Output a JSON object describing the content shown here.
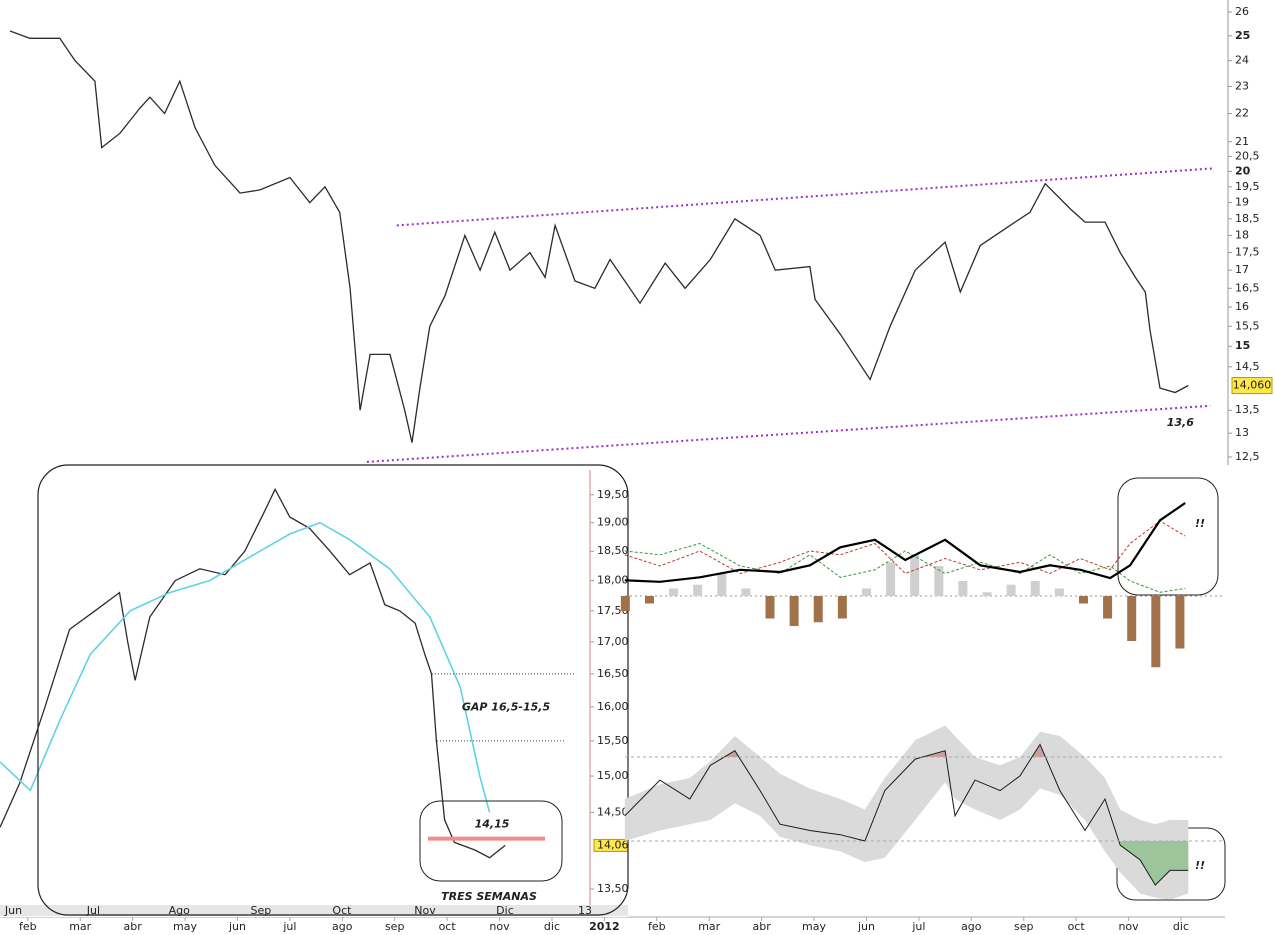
{
  "chart_data": [
    {
      "type": "line",
      "color": "#2b2b2b",
      "log_scale": true,
      "x": [
        0.66,
        1.04,
        1.61,
        1.9,
        2.28,
        2.41,
        2.76,
        3.14,
        3.33,
        3.61,
        3.9,
        4.19,
        4.57,
        5.05,
        5.43,
        6.0,
        6.38,
        6.67,
        6.95,
        7.15,
        7.34,
        7.53,
        7.91,
        8.19,
        8.33,
        8.48,
        8.67,
        8.96,
        9.34,
        9.63,
        9.91,
        10.2,
        10.58,
        10.87,
        11.06,
        11.44,
        11.82,
        12.11,
        12.68,
        13.16,
        13.54,
        14.02,
        14.49,
        14.97,
        15.26,
        15.92,
        16.02,
        16.5,
        17.07,
        17.45,
        17.93,
        18.5,
        18.79,
        19.17,
        19.74,
        20.12,
        20.41,
        20.89,
        21.17,
        21.55,
        21.84,
        22.13,
        22.32,
        22.41,
        22.6,
        22.89,
        23.14
      ],
      "values": [
        25.2,
        24.9,
        24.9,
        24,
        23.2,
        20.8,
        21.3,
        22.2,
        22.6,
        22,
        23.2,
        21.5,
        20.2,
        19.3,
        19.4,
        19.8,
        19,
        19.5,
        18.7,
        16.5,
        13.5,
        14.8,
        14.8,
        13.5,
        12.8,
        14,
        15.5,
        16.3,
        18,
        17,
        18.1,
        17,
        17.5,
        16.8,
        18.3,
        16.7,
        16.5,
        17.3,
        16.1,
        17.2,
        16.5,
        17.3,
        18.5,
        18,
        17,
        17.1,
        16.2,
        15.3,
        14.2,
        15.5,
        17,
        17.8,
        16.4,
        17.7,
        18.3,
        18.7,
        19.6,
        18.8,
        18.4,
        18.4,
        17.5,
        16.8,
        16.4,
        15.4,
        14,
        13.9,
        14.06
      ],
      "xlim": [
        0.47,
        23.84
      ],
      "xticks": [
        {
          "value": 1,
          "label": "feb"
        },
        {
          "value": 2,
          "label": "mar"
        },
        {
          "value": 3,
          "label": "abr"
        },
        {
          "value": 4,
          "label": "may"
        },
        {
          "value": 5,
          "label": "jun"
        },
        {
          "value": 6,
          "label": "jul"
        },
        {
          "value": 7,
          "label": "ago"
        },
        {
          "value": 8,
          "label": "sep"
        },
        {
          "value": 9,
          "label": "oct"
        },
        {
          "value": 10,
          "label": "nov"
        },
        {
          "value": 11,
          "label": "dic"
        },
        {
          "value": 12,
          "label": "2012"
        },
        {
          "value": 13,
          "label": "feb"
        },
        {
          "value": 14,
          "label": "mar"
        },
        {
          "value": 15,
          "label": "abr"
        },
        {
          "value": 16,
          "label": "may"
        },
        {
          "value": 17,
          "label": "jun"
        },
        {
          "value": 18,
          "label": "jul"
        },
        {
          "value": 19,
          "label": "ago"
        },
        {
          "value": 20,
          "label": "sep"
        },
        {
          "value": 21,
          "label": "oct"
        },
        {
          "value": 22,
          "label": "nov"
        },
        {
          "value": 23,
          "label": "dic"
        }
      ],
      "ylim": [
        12.5,
        26
      ],
      "yticks": [
        26,
        25,
        24,
        23,
        22,
        21,
        {
          "value": 20.5,
          "label": "20,5"
        },
        20,
        {
          "value": 19.5,
          "label": "19,5"
        },
        19,
        {
          "value": 18.5,
          "label": "18,5"
        },
        18,
        {
          "value": 17.5,
          "label": "17,5"
        },
        17,
        {
          "value": 16.5,
          "label": "16,5"
        },
        16,
        {
          "value": 15.5,
          "label": "15,5"
        },
        15,
        {
          "value": 14.5,
          "label": "14,5"
        },
        {
          "value": 13.5,
          "label": "13,5"
        },
        13,
        {
          "value": 12.5,
          "label": "12,5"
        }
      ],
      "trendlines": [
        {
          "x": [
            8.04,
            23.6
          ],
          "values": [
            18.3,
            20.1
          ],
          "color": "#9b2fc9"
        },
        {
          "x": [
            7.47,
            23.56
          ],
          "values": [
            12.4,
            13.6
          ],
          "color": "#9b2fc9",
          "end_label": "13,6"
        }
      ],
      "price_tag": {
        "value": 14.06,
        "label": "14,060"
      }
    },
    {
      "type": "line",
      "log_scale": true,
      "series": [
        {
          "color": "#2b2b2b",
          "x": [
            5.94,
            6.18,
            6.49,
            6.79,
            7.1,
            7.4,
            7.5,
            7.59,
            7.77,
            8.08,
            8.38,
            8.69,
            8.93,
            9.17,
            9.3,
            9.48,
            9.72,
            9.97,
            10.21,
            10.46,
            10.64,
            10.82,
            11.01,
            11.13,
            11.21,
            11.27,
            11.37,
            11.49,
            11.74,
            11.92,
            12.11
          ],
          "values": [
            14.3,
            14.9,
            16.0,
            17.2,
            17.5,
            17.8,
            17.0,
            16.4,
            17.4,
            18.0,
            18.2,
            18.1,
            18.5,
            19.2,
            19.6,
            19.1,
            18.9,
            18.5,
            18.1,
            18.3,
            17.6,
            17.5,
            17.3,
            16.8,
            16.5,
            15.5,
            14.4,
            14.1,
            14.0,
            13.9,
            14.06
          ]
        },
        {
          "color": "#5fd3e6",
          "x": [
            5.94,
            6.31,
            6.67,
            7.04,
            7.53,
            8.01,
            8.5,
            8.99,
            9.48,
            9.85,
            10.21,
            10.7,
            11.19,
            11.56,
            11.8,
            11.92
          ],
          "values": [
            15.2,
            14.8,
            15.8,
            16.8,
            17.5,
            17.8,
            18.0,
            18.4,
            18.8,
            19.0,
            18.7,
            18.2,
            17.4,
            16.3,
            15.0,
            14.5
          ]
        }
      ],
      "xlim": [
        5.94,
        13.61
      ],
      "xticks": [
        {
          "value": 6,
          "label": "Jun"
        },
        {
          "value": 7,
          "label": "Jul"
        },
        {
          "value": 8,
          "label": "Ago"
        },
        {
          "value": 9,
          "label": "Sep"
        },
        {
          "value": 10,
          "label": "Oct"
        },
        {
          "value": 11,
          "label": "Nov"
        },
        {
          "value": 12,
          "label": "Dic"
        },
        13
      ],
      "ylim": [
        13.3,
        20.05
      ],
      "yticks": [
        {
          "value": 19.5,
          "label": "19,50"
        },
        {
          "value": 19,
          "label": "19,00"
        },
        {
          "value": 18.5,
          "label": "18,50"
        },
        {
          "value": 18,
          "label": "18,00"
        },
        {
          "value": 17.5,
          "label": "17,50"
        },
        {
          "value": 17,
          "label": "17,00"
        },
        {
          "value": 16.5,
          "label": "16,50"
        },
        {
          "value": 16,
          "label": "16,00"
        },
        {
          "value": 15.5,
          "label": "15,50"
        },
        {
          "value": 15,
          "label": "15,00"
        },
        {
          "value": 14.5,
          "label": "14,50"
        },
        {
          "value": 13.5,
          "label": "13,50"
        }
      ],
      "gap": {
        "from": 16.5,
        "to": 15.5,
        "label": "GAP 16,5-15,5"
      },
      "support": {
        "value": 14.15,
        "label": "14,15"
      },
      "note": "TRES SEMANAS",
      "price_tag": {
        "value": 14.06,
        "label": "14,06"
      }
    },
    {
      "type": "line",
      "ylim": [
        -1,
        1.4
      ],
      "annotation": "!!",
      "series": [
        {
          "style": "bar",
          "color": "#cfcfcf",
          "negative_color": "#a0724a",
          "x": [
            12.4,
            12.86,
            13.32,
            13.78,
            14.24,
            14.7,
            15.16,
            15.62,
            16.08,
            16.54,
            17.0,
            17.46,
            17.92,
            18.38,
            18.84,
            19.3,
            19.76,
            20.22,
            20.68,
            21.14,
            21.6,
            22.06,
            22.52,
            22.98
          ],
          "values": [
            -0.2,
            -0.1,
            0.1,
            0.15,
            0.3,
            0.1,
            -0.3,
            -0.4,
            -0.35,
            -0.3,
            0.1,
            0.45,
            0.55,
            0.4,
            0.2,
            0.05,
            0.15,
            0.2,
            0.1,
            -0.1,
            -0.3,
            -0.6,
            -0.95,
            -0.7
          ]
        },
        {
          "style": "dashed",
          "color": "#c0392b",
          "x": [
            12.39,
            13.06,
            13.82,
            14.59,
            15.35,
            15.92,
            16.5,
            17.16,
            17.74,
            18.5,
            19.17,
            19.93,
            20.5,
            21.08,
            21.65,
            22.03,
            22.6,
            23.08
          ],
          "values": [
            0.55,
            0.4,
            0.6,
            0.3,
            0.45,
            0.6,
            0.55,
            0.7,
            0.3,
            0.5,
            0.35,
            0.45,
            0.3,
            0.5,
            0.35,
            0.7,
            1.0,
            0.8
          ]
        },
        {
          "style": "dashed",
          "color": "#2e9b3a",
          "x": [
            12.39,
            13.06,
            13.82,
            14.59,
            15.35,
            15.92,
            16.5,
            17.16,
            17.74,
            18.5,
            19.17,
            19.93,
            20.5,
            21.08,
            21.65,
            22.03,
            22.6,
            23.08
          ],
          "values": [
            0.6,
            0.55,
            0.7,
            0.4,
            0.3,
            0.55,
            0.25,
            0.35,
            0.6,
            0.3,
            0.45,
            0.3,
            0.55,
            0.3,
            0.4,
            0.2,
            0.05,
            0.1
          ]
        },
        {
          "style": "solid",
          "color": "#000000",
          "x": [
            12.39,
            13.06,
            13.82,
            14.59,
            15.35,
            15.92,
            16.5,
            17.16,
            17.74,
            18.5,
            19.17,
            19.93,
            20.5,
            21.08,
            21.65,
            22.03,
            22.6,
            23.08
          ],
          "values": [
            0.21,
            0.19,
            0.25,
            0.35,
            0.32,
            0.41,
            0.65,
            0.75,
            0.48,
            0.75,
            0.41,
            0.32,
            0.41,
            0.35,
            0.24,
            0.41,
            1.01,
            1.24
          ]
        }
      ]
    },
    {
      "type": "line",
      "ylim": [
        0,
        100
      ],
      "levels": [
        70,
        30
      ],
      "annotation": "!!",
      "series": [
        {
          "color": "#1a1a1a",
          "band_color": "#dadada",
          "low_color": "#9cc59c",
          "high_color": "#c9a0a0",
          "x": [
            12.39,
            13.06,
            13.63,
            14.02,
            14.49,
            14.97,
            15.35,
            15.92,
            16.5,
            16.97,
            17.35,
            17.93,
            18.5,
            18.69,
            19.07,
            19.55,
            19.93,
            20.31,
            20.69,
            21.17,
            21.55,
            21.84,
            22.22,
            22.51,
            22.79,
            23.14
          ],
          "values": [
            42,
            59,
            50,
            66,
            73,
            54,
            38,
            35,
            33,
            30,
            54,
            69,
            73,
            42,
            59,
            54,
            61,
            76,
            54,
            35,
            50,
            28,
            21,
            9,
            16,
            16
          ],
          "upper": [
            50,
            57,
            60,
            68,
            80,
            70,
            62,
            55,
            50,
            45,
            60,
            78,
            85,
            80,
            70,
            66,
            70,
            82,
            80,
            70,
            60,
            45,
            40,
            38,
            40,
            40
          ],
          "lower": [
            30,
            35,
            38,
            40,
            48,
            42,
            32,
            28,
            25,
            20,
            22,
            40,
            58,
            50,
            45,
            40,
            45,
            55,
            52,
            40,
            25,
            15,
            5,
            3,
            2,
            5
          ]
        }
      ]
    }
  ]
}
